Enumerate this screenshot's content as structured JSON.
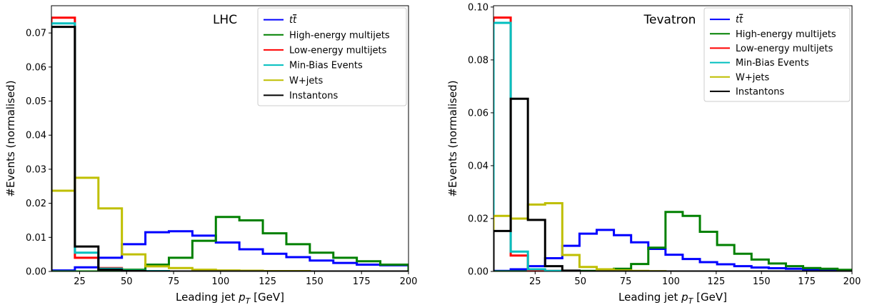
{
  "chart_data": [
    {
      "type": "step",
      "title": "LHC",
      "xlabel": "Leading jet $p_T$ [GeV]",
      "xlabel_parts": {
        "before": "Leading jet ",
        "sym": "p",
        "sub": "T",
        "after": " [GeV]"
      },
      "ylabel": "#Events (normalised)",
      "xlim": [
        10,
        200
      ],
      "ylim": [
        0,
        0.078
      ],
      "xticks": [
        "25",
        "50",
        "75",
        "100",
        "125",
        "150",
        "175",
        "200"
      ],
      "xtick_values": [
        25,
        50,
        75,
        100,
        125,
        150,
        175,
        200
      ],
      "yticks": [
        "0.00",
        "0.01",
        "0.02",
        "0.03",
        "0.04",
        "0.05",
        "0.06",
        "0.07"
      ],
      "ytick_values": [
        0,
        0.01,
        0.02,
        0.03,
        0.04,
        0.05,
        0.06,
        0.07
      ],
      "grid": false,
      "legend_position": "top-right",
      "bin_edges": [
        10,
        22.5,
        35,
        47.5,
        60,
        72.5,
        85,
        97.5,
        110,
        122.5,
        135,
        147.5,
        160,
        172.5,
        185,
        200
      ],
      "series": [
        {
          "name": "t̅t",
          "label_base": "t",
          "label_bar": "t",
          "color": "#0000ff",
          "values": [
            0.0003,
            0.0012,
            0.004,
            0.008,
            0.0115,
            0.0118,
            0.0105,
            0.0085,
            0.0065,
            0.0052,
            0.0042,
            0.0032,
            0.0025,
            0.002,
            0.0018
          ]
        },
        {
          "name": "High-energy multijets",
          "color": "#008000",
          "values": [
            0,
            0,
            0.0002,
            0.0005,
            0.002,
            0.004,
            0.009,
            0.016,
            0.015,
            0.0112,
            0.008,
            0.0055,
            0.004,
            0.003,
            0.002
          ]
        },
        {
          "name": "Low-energy multijets",
          "color": "#ff0000",
          "values": [
            0.0745,
            0.004,
            0.001,
            0.0002,
            0.0001,
            0,
            0,
            0,
            0,
            0,
            0,
            0,
            0,
            0,
            0
          ]
        },
        {
          "name": "Min-Bias Events",
          "color": "#00bfbf",
          "values": [
            0.0728,
            0.0055,
            0.0008,
            0.0002,
            0.0001,
            0,
            0,
            0,
            0,
            0,
            0,
            0,
            0,
            0,
            0
          ]
        },
        {
          "name": "W+jets",
          "color": "#bfbf00",
          "values": [
            0.0237,
            0.0275,
            0.0185,
            0.005,
            0.0015,
            0.001,
            0.0005,
            0.0003,
            0.0002,
            0.0001,
            0.0001,
            0,
            0,
            0,
            0
          ]
        },
        {
          "name": "Instantons",
          "color": "#000000",
          "values": [
            0.0718,
            0.0073,
            0.0005,
            0.0001,
            0,
            0,
            0,
            0,
            0,
            0,
            0,
            0,
            0,
            0,
            0
          ]
        }
      ]
    },
    {
      "type": "step",
      "title": "Tevatron",
      "xlabel": "Leading jet $p_T$ [GeV]",
      "xlabel_parts": {
        "before": "Leading jet ",
        "sym": "p",
        "sub": "T",
        "after": " [GeV]"
      },
      "ylabel": "#Events (normalised)",
      "xlim": [
        2,
        200
      ],
      "ylim": [
        0,
        0.1005
      ],
      "xticks": [
        "25",
        "50",
        "75",
        "100",
        "125",
        "150",
        "175",
        "200"
      ],
      "xtick_values": [
        25,
        50,
        75,
        100,
        125,
        150,
        175,
        200
      ],
      "yticks": [
        "0.00",
        "0.02",
        "0.04",
        "0.06",
        "0.08",
        "0.10"
      ],
      "ytick_values": [
        0,
        0.02,
        0.04,
        0.06,
        0.08,
        0.1
      ],
      "grid": false,
      "legend_position": "top-right",
      "bin_edges": [
        2,
        11.5,
        21,
        30.5,
        40,
        49.5,
        59,
        68.5,
        78,
        87.5,
        97,
        106.5,
        116,
        125.5,
        135,
        144.5,
        154,
        163.5,
        173,
        182.5,
        192,
        200
      ],
      "series": [
        {
          "name": "t̅t",
          "label_base": "t",
          "label_bar": "t",
          "color": "#0000ff",
          "values": [
            0.0002,
            0.0008,
            0.002,
            0.005,
            0.0097,
            0.0143,
            0.0157,
            0.0137,
            0.011,
            0.0085,
            0.0063,
            0.0047,
            0.0035,
            0.0027,
            0.002,
            0.0015,
            0.0012,
            0.001,
            0.0008,
            0.0006,
            0.0005
          ]
        },
        {
          "name": "High-energy multijets",
          "color": "#008000",
          "values": [
            0,
            0,
            0,
            0,
            0,
            0.0002,
            0.0005,
            0.001,
            0.0028,
            0.009,
            0.0225,
            0.021,
            0.015,
            0.01,
            0.0067,
            0.0045,
            0.003,
            0.002,
            0.0013,
            0.001,
            0.0006
          ]
        },
        {
          "name": "Low-energy multijets",
          "color": "#ff0000",
          "values": [
            0.096,
            0.006,
            0.0005,
            0.0002,
            0.0001,
            0,
            0,
            0,
            0,
            0,
            0,
            0,
            0,
            0,
            0,
            0,
            0,
            0,
            0,
            0,
            0
          ]
        },
        {
          "name": "Min-Bias Events",
          "color": "#00bfbf",
          "values": [
            0.094,
            0.0075,
            0.0008,
            0.0002,
            0.0001,
            0,
            0,
            0,
            0,
            0,
            0,
            0,
            0,
            0,
            0,
            0,
            0,
            0,
            0,
            0,
            0
          ]
        },
        {
          "name": "W+jets",
          "color": "#bfbf00",
          "values": [
            0.021,
            0.02,
            0.0253,
            0.0258,
            0.0062,
            0.0017,
            0.0008,
            0.0004,
            0.0002,
            0.0001,
            0,
            0,
            0,
            0,
            0,
            0,
            0,
            0,
            0,
            0,
            0
          ]
        },
        {
          "name": "Instantons",
          "color": "#000000",
          "values": [
            0.0153,
            0.0653,
            0.0195,
            0.002,
            0.0003,
            0,
            0,
            0,
            0,
            0,
            0,
            0,
            0,
            0,
            0,
            0,
            0,
            0,
            0,
            0,
            0
          ]
        }
      ]
    }
  ]
}
